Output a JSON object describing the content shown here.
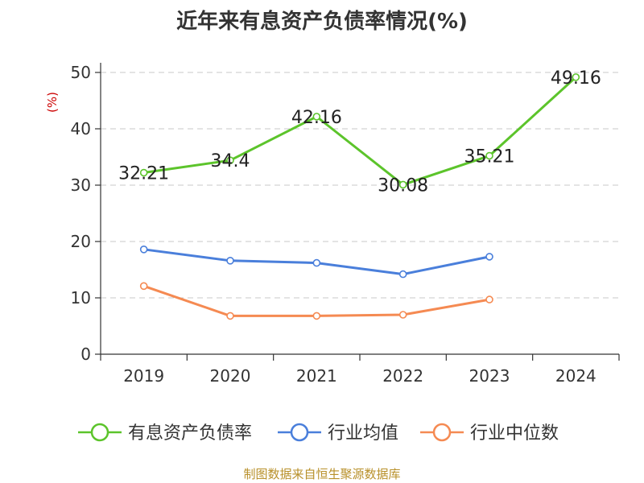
{
  "chart_data": {
    "type": "line",
    "title": "近年来有息资产负债率情况(%)",
    "ylabel": "(%)",
    "xlabel": "",
    "categories": [
      "2019",
      "2020",
      "2021",
      "2022",
      "2023",
      "2024"
    ],
    "ylim": [
      0,
      50
    ],
    "yticks": [
      0,
      10,
      20,
      30,
      40,
      50
    ],
    "grid": true,
    "legend_position": "bottom",
    "series": [
      {
        "name": "有息资产负债率",
        "color": "#5cc42b",
        "values": [
          32.21,
          34.4,
          42.16,
          30.08,
          35.21,
          49.16
        ],
        "labels": [
          "32.21",
          "34.4",
          "42.16",
          "30.08",
          "35.21",
          "49.16"
        ]
      },
      {
        "name": "行业均值",
        "color": "#4a7fdb",
        "values": [
          18.6,
          16.6,
          16.2,
          14.2,
          17.3,
          null
        ]
      },
      {
        "name": "行业中位数",
        "color": "#f58a52",
        "values": [
          12.1,
          6.8,
          6.8,
          7.0,
          9.7,
          null
        ]
      }
    ]
  },
  "source": "制图数据来自恒生聚源数据库"
}
